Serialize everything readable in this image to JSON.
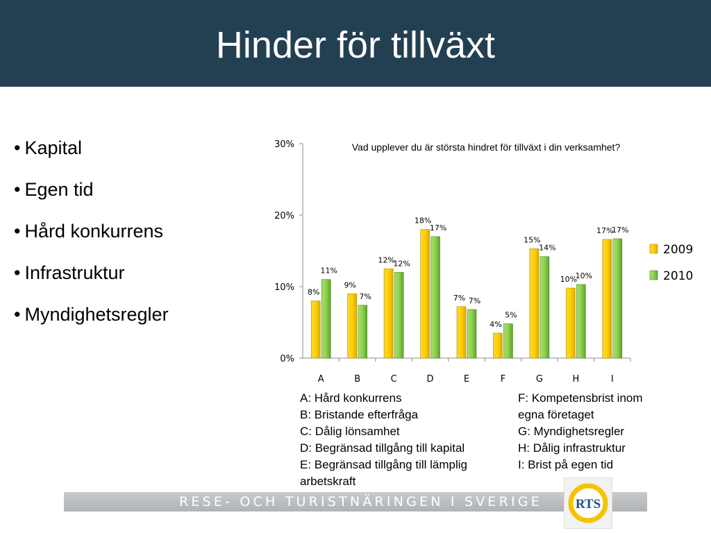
{
  "slide": {
    "title": "Hinder för tillväxt",
    "bullets": [
      "Kapital",
      "Egen tid",
      "Hård konkurrens",
      "Infrastruktur",
      "Myndighetsregler"
    ],
    "bullet_symbol": "•",
    "category_legend_left": [
      "A: Hård konkurrens",
      "B: Bristande efterfråga",
      "C: Dålig lönsamhet",
      "D: Begränsad tillgång till kapital",
      "E: Begränsad tillgång till lämplig",
      "arbetskraft"
    ],
    "category_legend_right": [
      "F: Kompetensbrist inom",
      "egna företaget",
      "G: Myndighetsregler",
      "H: Dålig infrastruktur",
      "I: Brist på egen tid"
    ],
    "footer": "RESE- OCH TURISTNÄRINGEN I SVERIGE",
    "logo_text": "RTS",
    "colors": {
      "header": "#233f52",
      "series_2009": "#f5c400",
      "series_2010": "#8fd14f"
    }
  },
  "chart_data": {
    "type": "bar",
    "title": "Vad upplever du är största hindret för tillväxt i din verksamhet?",
    "categories": [
      "A",
      "B",
      "C",
      "D",
      "E",
      "F",
      "G",
      "H",
      "I"
    ],
    "series": [
      {
        "name": "2009",
        "values": [
          8,
          9,
          12.5,
          18,
          7.2,
          3.5,
          15.3,
          9.8,
          16.6
        ],
        "labels": [
          "8%",
          "9%",
          "12%",
          "18%",
          "7%",
          "4%",
          "15%",
          "10%",
          "17%"
        ]
      },
      {
        "name": "2010",
        "values": [
          11,
          7.4,
          12,
          17,
          6.8,
          4.8,
          14.2,
          10.3,
          16.7
        ],
        "labels": [
          "11%",
          "7%",
          "12%",
          "17%",
          "7%",
          "5%",
          "14%",
          "10%",
          "17%"
        ]
      }
    ],
    "y_ticks": [
      "0%",
      "10%",
      "20%",
      "30%"
    ],
    "ylim": [
      0,
      30
    ],
    "legend_position": "right",
    "grid": false
  }
}
